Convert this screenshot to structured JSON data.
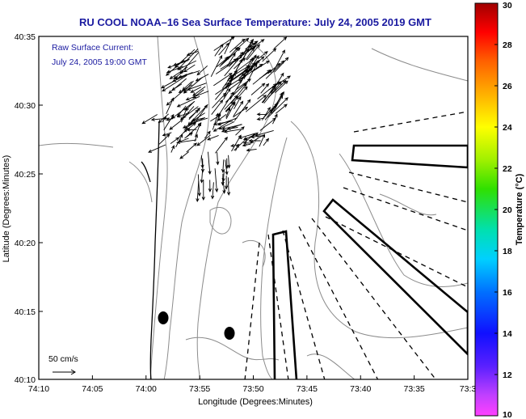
{
  "title": "RU COOL  NOAA–16  Sea Surface Temperature:  July 24, 2005 2019 GMT",
  "overlay": {
    "line1": "Raw Surface Current:",
    "line2": "July 24, 2005 19:00 GMT"
  },
  "axes": {
    "xlabel": "Longitude (Degrees:Minutes)",
    "ylabel": "Latitude (Degrees:Minutes)",
    "x_ticks": [
      "74:10",
      "74:05",
      "74:00",
      "73:55",
      "73:50",
      "73:45",
      "73:40",
      "73:35",
      "73:3"
    ],
    "y_ticks": [
      "40:35",
      "40:30",
      "40:25",
      "40:20",
      "40:15",
      "40:10"
    ]
  },
  "scale": {
    "label": "50 cm/s"
  },
  "colorbar": {
    "label": "Temperature (°C)",
    "ticks": [
      "30",
      "28",
      "26",
      "24",
      "22",
      "20",
      "18",
      "16",
      "14",
      "12",
      "10"
    ],
    "min": 10,
    "max": 30
  },
  "colors": {
    "title": "#1a1aa0",
    "frame": "#000000",
    "contour": "#8c8c8c"
  }
}
